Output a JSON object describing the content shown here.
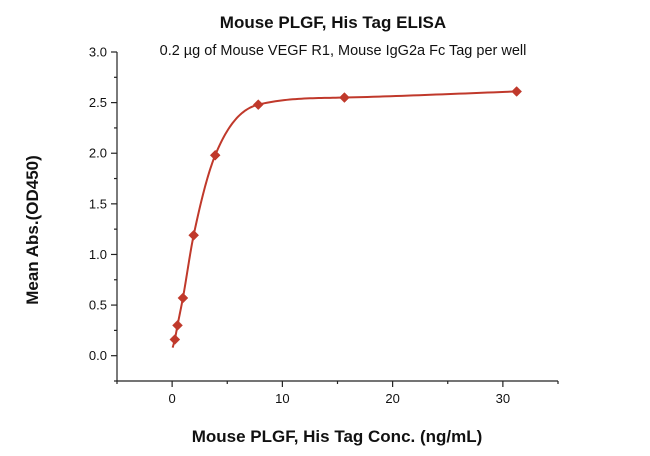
{
  "chart_data": {
    "type": "scatter",
    "title": "Mouse PLGF, His Tag ELISA",
    "subtitle": "0.2 µg of Mouse VEGF R1, Mouse IgG2a Fc Tag per well",
    "xlabel": "Mouse PLGF, His Tag Conc. (ng/mL)",
    "ylabel": "Mean Abs.(OD450)",
    "xlim": [
      -5,
      35
    ],
    "ylim": [
      -0.25,
      3.0
    ],
    "x_ticks": [
      0,
      10,
      20,
      30
    ],
    "y_ticks": [
      0.0,
      0.5,
      1.0,
      1.5,
      2.0,
      2.5,
      3.0
    ],
    "y_tick_labels": [
      "0.0",
      "0.5",
      "1.0",
      "1.5",
      "2.0",
      "2.5",
      "3.0"
    ],
    "grid": false,
    "series": [
      {
        "x": [
          0.244,
          0.488,
          0.977,
          1.953,
          3.906,
          7.813,
          15.625,
          31.25
        ],
        "y": [
          0.16,
          0.3,
          0.57,
          1.19,
          1.98,
          2.48,
          2.55,
          2.61
        ],
        "marker": "diamond",
        "fit_curve": true
      }
    ],
    "color": "#c0392b"
  }
}
